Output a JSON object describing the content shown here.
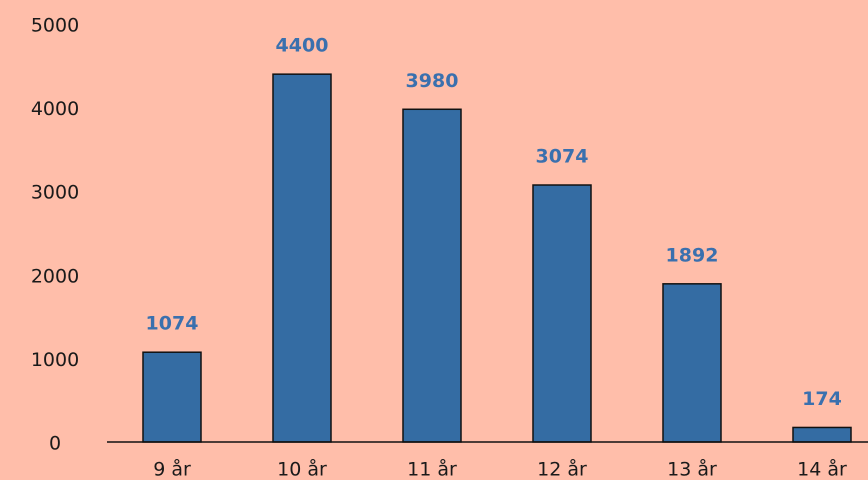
{
  "chart_data": {
    "type": "bar",
    "categories": [
      "9 år",
      "10 år",
      "11 år",
      "12 år",
      "13 år",
      "14 år"
    ],
    "values": [
      1074,
      4400,
      3980,
      3074,
      1892,
      174
    ],
    "color": "#346ca3",
    "ylim": [
      0,
      5000
    ],
    "yticks": [
      0,
      1000,
      2000,
      3000,
      4000,
      5000
    ],
    "grid": false
  }
}
